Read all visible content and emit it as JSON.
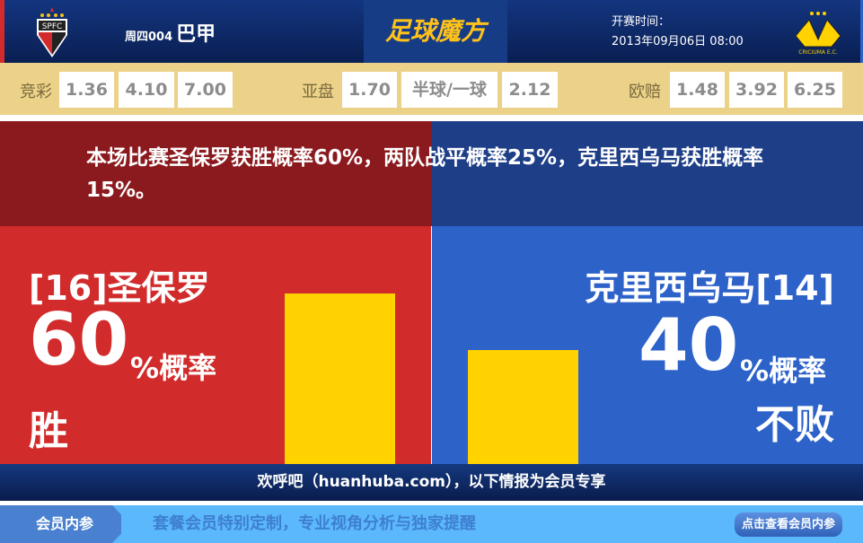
{
  "header": {
    "week": "周四004",
    "league": "巴甲",
    "brand": "足球魔方",
    "time_label": "开赛时间：",
    "time_value": "2013年09月06日 08:00",
    "home_logo_text": "SPFC",
    "away_logo_text": "CRICIUMA E.C."
  },
  "odds": {
    "jc": {
      "label": "竞彩",
      "values": [
        "1.36",
        "4.10",
        "7.00"
      ]
    },
    "yp": {
      "label": "亚盘",
      "values": [
        "1.70",
        "半球/一球",
        "2.12"
      ]
    },
    "op": {
      "label": "欧赔",
      "values": [
        "1.48",
        "3.92",
        "6.25"
      ]
    }
  },
  "summary": "本场比赛圣保罗获胜概率60%，两队战平概率25%，克里西乌马获胜概率15%。",
  "home": {
    "name": "[16]圣保罗",
    "pct": "60",
    "unit": "%概率",
    "result": "胜",
    "bar_percent": 60
  },
  "away": {
    "name": "克里西乌马[14]",
    "pct": "40",
    "unit": "%概率",
    "result": "不败",
    "bar_percent": 40
  },
  "footer": "欢呼吧（huanhuba.com），以下情报为会员专享",
  "member": {
    "tab": "会员内参",
    "text": "套餐会员特别定制，专业视角分析与独家提醒",
    "button": "点击查看会员内参"
  },
  "colors": {
    "home": "#d12b2b",
    "away": "#2d62c9",
    "bar": "#ffd200"
  }
}
